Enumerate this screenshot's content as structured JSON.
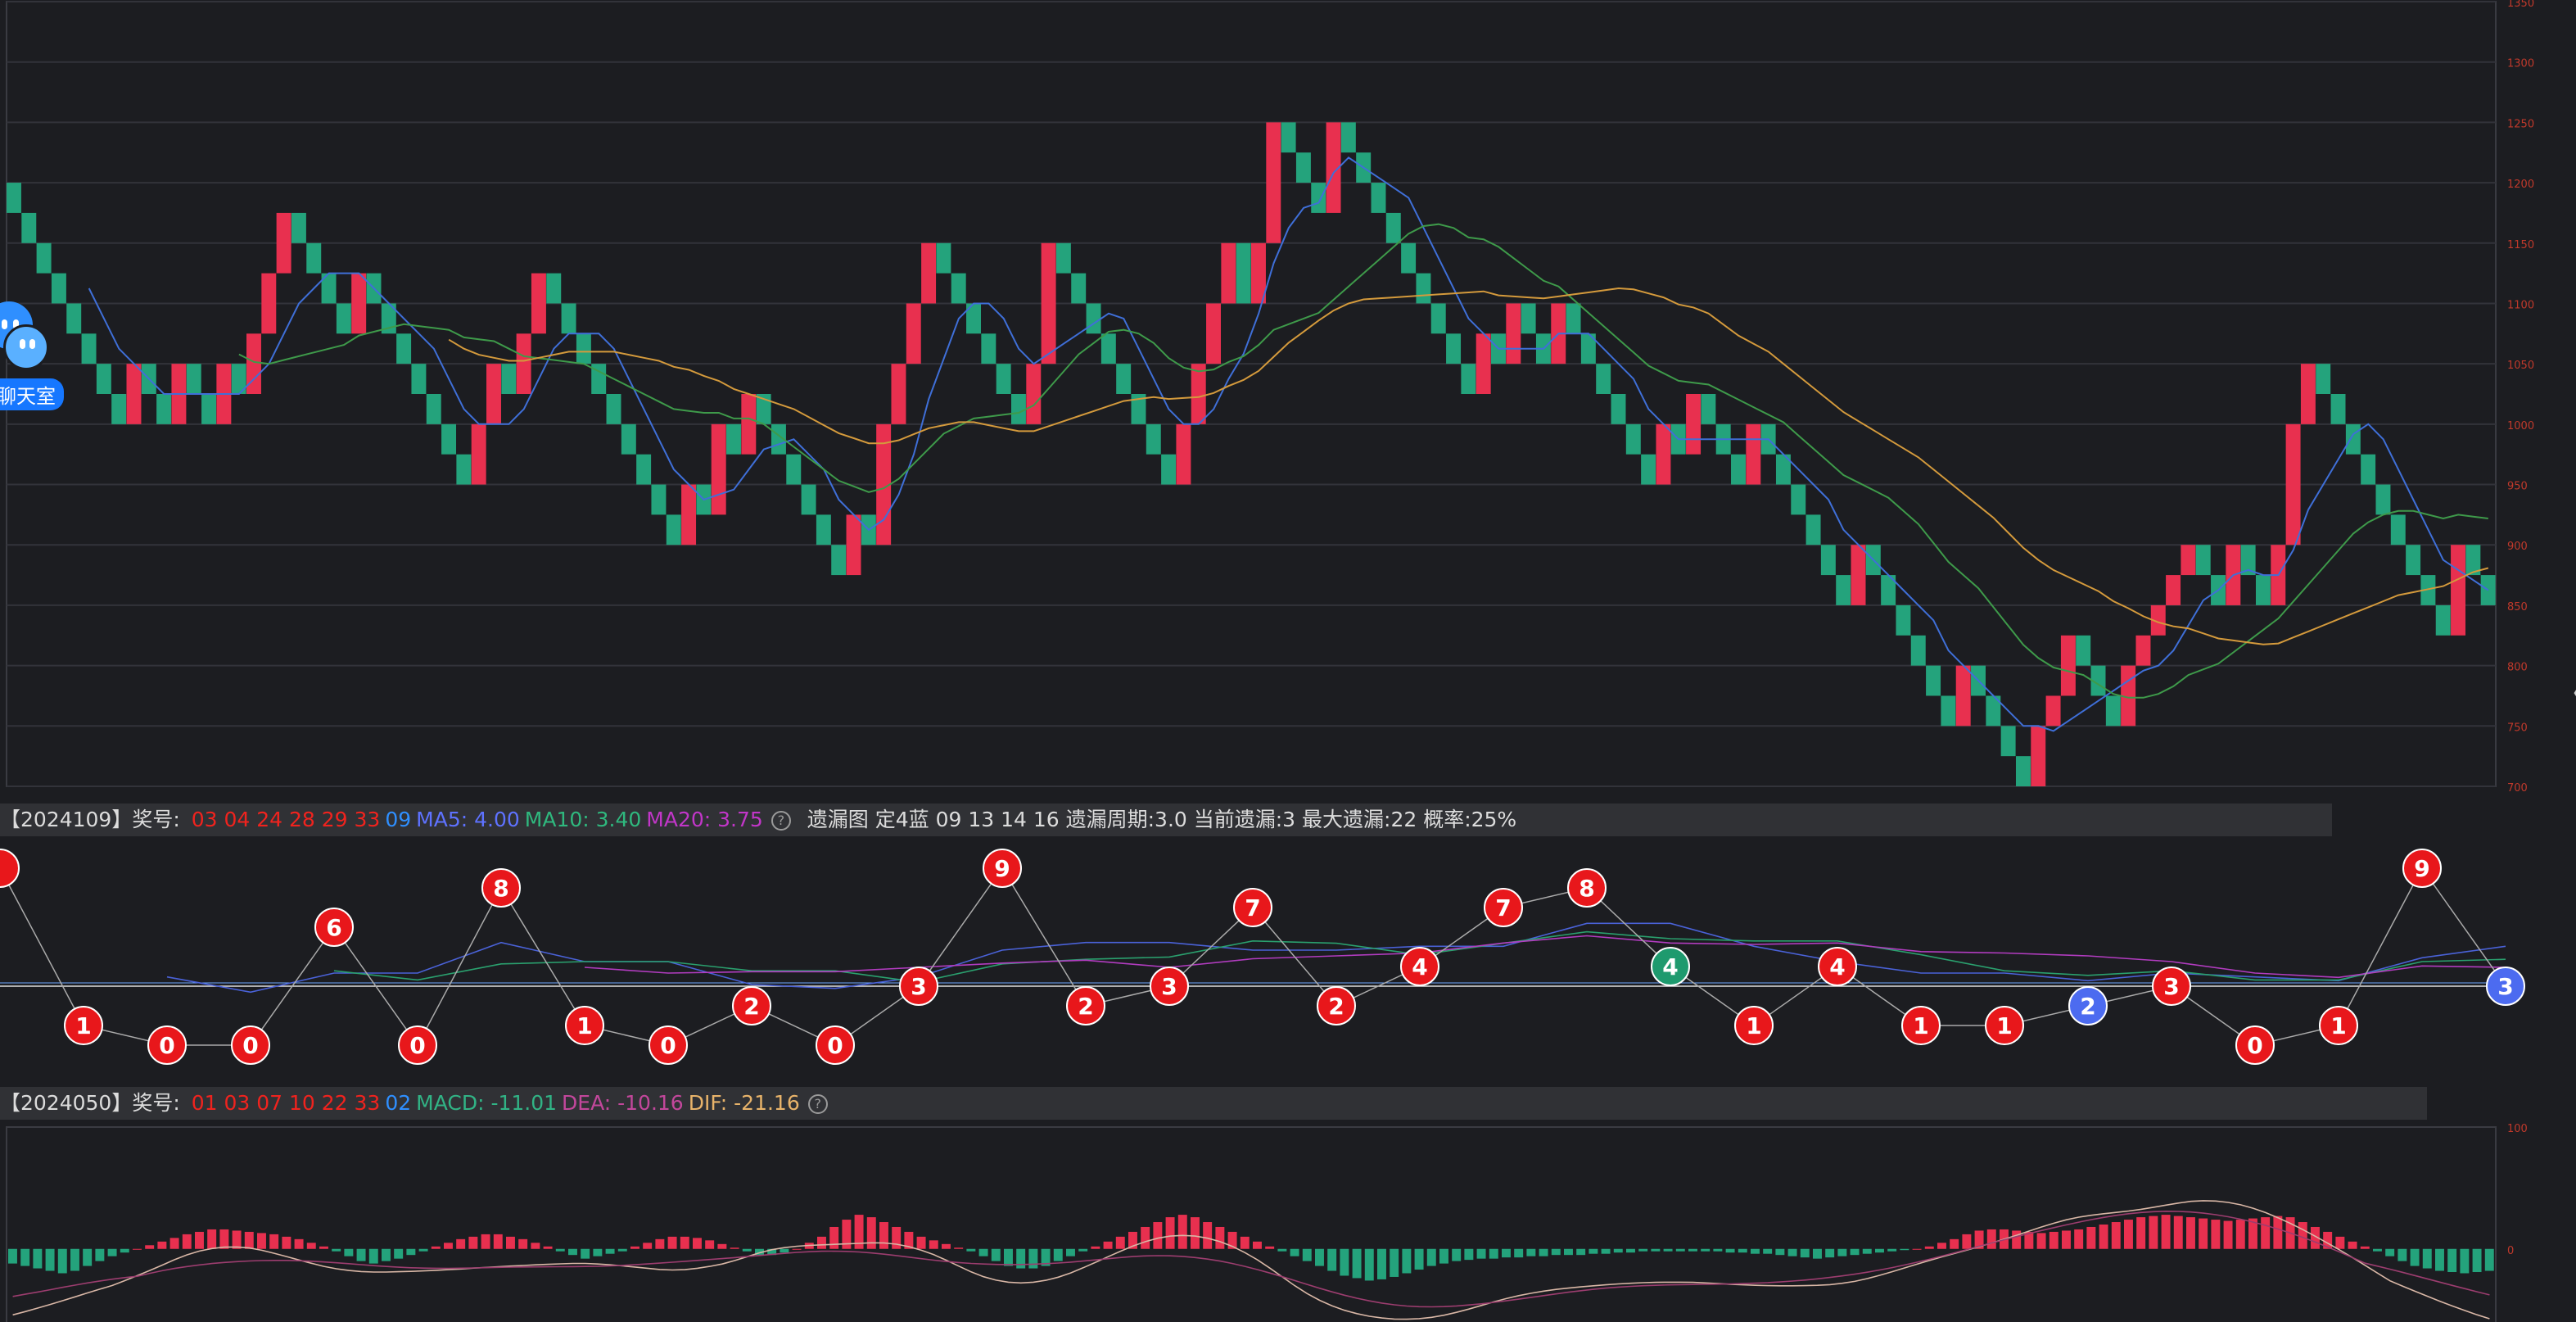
{
  "chart_data": [
    {
      "type": "candlestick",
      "y_ticks": [
        "1350",
        "1300",
        "1250",
        "1200",
        "1150",
        "1100",
        "1050",
        "1000",
        "950",
        "900",
        "850",
        "800",
        "750",
        "700"
      ],
      "ylim": [
        700,
        1350
      ],
      "box_size": 25,
      "close": [
        1175,
        1150,
        1125,
        1100,
        1075,
        1050,
        1025,
        1000,
        1050,
        1025,
        1000,
        1050,
        1025,
        1000,
        1050,
        1025,
        1075,
        1125,
        1175,
        1150,
        1125,
        1100,
        1075,
        1125,
        1100,
        1075,
        1050,
        1025,
        1000,
        975,
        950,
        1000,
        1050,
        1025,
        1075,
        1125,
        1100,
        1075,
        1050,
        1025,
        1000,
        975,
        950,
        925,
        900,
        950,
        925,
        1000,
        975,
        1025,
        1000,
        975,
        950,
        925,
        900,
        875,
        925,
        900,
        1000,
        1050,
        1100,
        1150,
        1125,
        1100,
        1075,
        1050,
        1025,
        1000,
        1050,
        1150,
        1125,
        1100,
        1075,
        1050,
        1025,
        1000,
        975,
        950,
        1000,
        1050,
        1100,
        1150,
        1100,
        1150,
        1250,
        1225,
        1200,
        1175,
        1250,
        1225,
        1200,
        1175,
        1150,
        1125,
        1100,
        1075,
        1050,
        1025,
        1075,
        1050,
        1100,
        1075,
        1050,
        1100,
        1075,
        1050,
        1025,
        1000,
        975,
        950,
        1000,
        975,
        1025,
        1000,
        975,
        950,
        1000,
        975,
        950,
        925,
        900,
        875,
        850,
        900,
        875,
        850,
        825,
        800,
        775,
        750,
        800,
        775,
        750,
        725,
        700,
        750,
        775,
        825,
        800,
        775,
        750,
        800,
        825,
        850,
        875,
        900,
        875,
        850,
        900,
        875,
        850,
        900,
        1000,
        1050,
        1025,
        1000,
        975,
        950,
        925,
        900,
        875,
        850,
        825,
        900,
        875,
        850
      ]
    },
    {
      "type": "line",
      "values": [
        null,
        1,
        0,
        0,
        6,
        0,
        8,
        1,
        0,
        2,
        0,
        3,
        9,
        2,
        3,
        7,
        2,
        4,
        7,
        8,
        4,
        1,
        4,
        1,
        1,
        2,
        3,
        0,
        1,
        9,
        3
      ]
    },
    {
      "type": "bar",
      "y_ticks": [
        "100",
        "0"
      ],
      "ylim": [
        -60,
        100
      ],
      "values": [
        -12,
        -14,
        -16,
        -18,
        -20,
        -18,
        -14,
        -10,
        -6,
        -3,
        0,
        3,
        6,
        9,
        12,
        14,
        16,
        16,
        15,
        14,
        13,
        12,
        10,
        8,
        5,
        2,
        -2,
        -6,
        -10,
        -12,
        -10,
        -8,
        -5,
        -2,
        2,
        5,
        8,
        10,
        12,
        12,
        10,
        8,
        5,
        2,
        -2,
        -5,
        -8,
        -6,
        -4,
        -2,
        2,
        5,
        8,
        10,
        10,
        9,
        7,
        4,
        1,
        -2,
        -5,
        -5,
        -3,
        0,
        5,
        10,
        18,
        24,
        28,
        26,
        22,
        18,
        14,
        10,
        7,
        4,
        1,
        -2,
        -6,
        -10,
        -14,
        -16,
        -16,
        -14,
        -10,
        -6,
        -2,
        2,
        6,
        10,
        14,
        18,
        22,
        26,
        28,
        26,
        22,
        18,
        14,
        10,
        6,
        2,
        -2,
        -6,
        -10,
        -14,
        -18,
        -22,
        -24,
        -26,
        -25,
        -23,
        -20,
        -17,
        -14,
        -12,
        -10,
        -9,
        -8,
        -8,
        -7,
        -7,
        -6,
        -6,
        -5,
        -5,
        -5,
        -4,
        -4,
        -3,
        -3,
        -2,
        -2,
        -2,
        -2,
        -2,
        -2,
        -2,
        -3,
        -3,
        -4,
        -4,
        -5,
        -6,
        -7,
        -8,
        -7,
        -6,
        -5,
        -4,
        -3,
        -2,
        -1,
        0,
        2,
        5,
        8,
        12,
        15,
        16,
        16,
        15,
        14,
        13,
        14,
        15,
        16,
        18,
        20,
        22,
        24,
        26,
        27,
        28,
        27,
        26,
        25,
        24,
        23,
        24,
        25,
        26,
        27,
        26,
        22,
        18,
        14,
        10,
        6,
        2,
        -2,
        -6,
        -10,
        -14,
        -16,
        -18,
        -19,
        -20,
        -19,
        -18
      ]
    }
  ],
  "info_bars": [
    {
      "period": "【2024109】奖号: ",
      "red_numbers": "03 04 24 28 29 33",
      "blue_number": "09",
      "ind1": "MA5: 4.00",
      "ind2": "MA10: 3.40",
      "ind3": "MA20: 3.75",
      "center": "遗漏图  定4蓝  09 13 14 16    遗漏周期:3.0  当前遗漏:3  最大遗漏:22  概率:25%"
    },
    {
      "period": "【2024050】奖号: ",
      "red_numbers": "01 03 07 10 22 33",
      "blue_number": "02",
      "ind1": "MACD: -11.01",
      "ind2": "DEA: -10.16",
      "ind3": "DIF: -21.16"
    }
  ],
  "help_glyph": "?",
  "chat_label": "聊天室",
  "collapse_glyph": "〈",
  "colors": {
    "up": "#e8304f",
    "down": "#24a37c",
    "grid": "#32333a",
    "ball_red": "#e8171b",
    "ball_green": "#1e9a6e",
    "ball_blue": "#4c6bf0",
    "ball_purple": "#a00ecc"
  }
}
